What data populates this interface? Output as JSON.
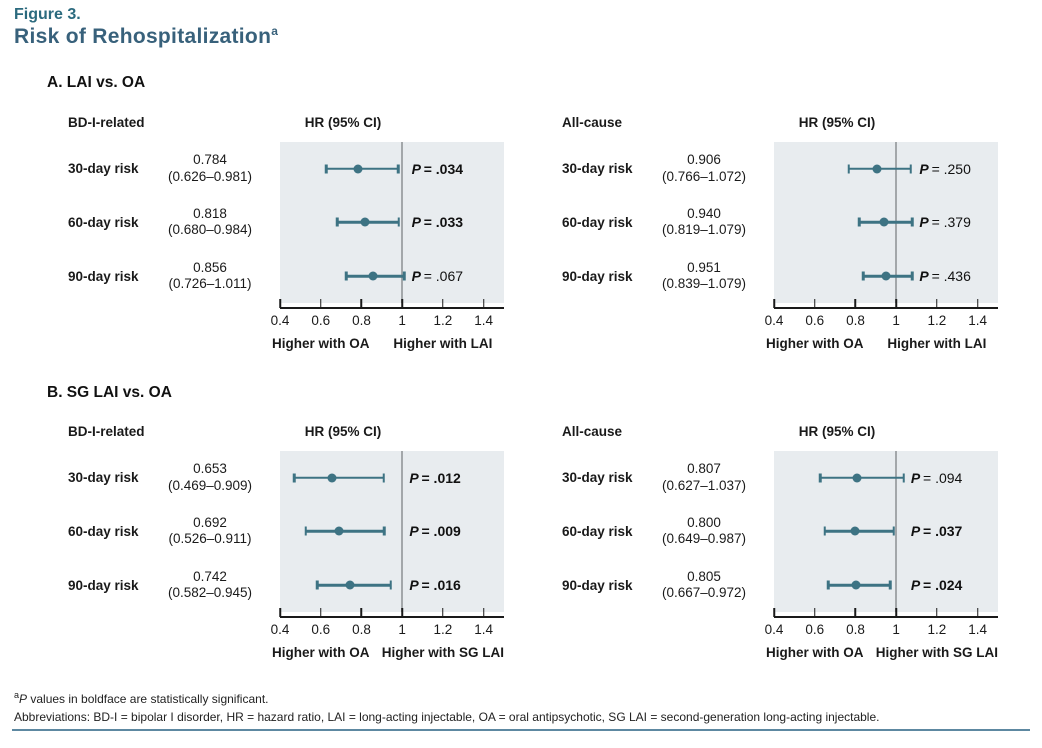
{
  "figure": {
    "label": "Figure 3.",
    "title": "Risk of Rehospitalization",
    "title_superscript": "a"
  },
  "colors": {
    "figure_label_teal": "#2b6a7e",
    "title_teal": "#38617b",
    "marker_teal": "#3d7383",
    "plot_background": "#e8ecef",
    "reference_line_gray": "#a3a7aa",
    "bottom_rule_blue": "#5d88a1"
  },
  "axis": {
    "min": 0.4,
    "max": 1.5,
    "reference": 1.0,
    "tick_labels": [
      "0.4",
      "0.6",
      "0.8",
      "1",
      "1.2",
      "1.4"
    ],
    "tick_values": [
      0.4,
      0.6,
      0.8,
      1.0,
      1.2,
      1.4
    ]
  },
  "p_symbol": "P",
  "panels": [
    {
      "id": "A",
      "section_label": "A. LAI vs. OA",
      "direction_left": "Higher with OA",
      "direction_right": "Higher with LAI",
      "subcharts": [
        {
          "group_label": "BD-I-related",
          "col_header": "HR (95% CI)",
          "rows": [
            {
              "label": "30-day risk",
              "estimate": "0.784",
              "ci_text": "(0.626–0.981)",
              "hr": 0.784,
              "ci_low": 0.626,
              "ci_high": 0.981,
              "p": "= .034",
              "significant": true
            },
            {
              "label": "60-day risk",
              "estimate": "0.818",
              "ci_text": "(0.680–0.984)",
              "hr": 0.818,
              "ci_low": 0.68,
              "ci_high": 0.984,
              "p": "= .033",
              "significant": true
            },
            {
              "label": "90-day risk",
              "estimate": "0.856",
              "ci_text": "(0.726–1.011)",
              "hr": 0.856,
              "ci_low": 0.726,
              "ci_high": 1.011,
              "p": "= .067",
              "significant": false
            }
          ]
        },
        {
          "group_label": "All-cause",
          "col_header": "HR (95% CI)",
          "rows": [
            {
              "label": "30-day risk",
              "estimate": "0.906",
              "ci_text": "(0.766–1.072)",
              "hr": 0.906,
              "ci_low": 0.766,
              "ci_high": 1.072,
              "p": "= .250",
              "significant": false
            },
            {
              "label": "60-day risk",
              "estimate": "0.940",
              "ci_text": "(0.819–1.079)",
              "hr": 0.94,
              "ci_low": 0.819,
              "ci_high": 1.079,
              "p": "= .379",
              "significant": false
            },
            {
              "label": "90-day risk",
              "estimate": "0.951",
              "ci_text": "(0.839–1.079)",
              "hr": 0.951,
              "ci_low": 0.839,
              "ci_high": 1.079,
              "p": "= .436",
              "significant": false
            }
          ]
        }
      ]
    },
    {
      "id": "B",
      "section_label": "B. SG LAI vs. OA",
      "direction_left": "Higher with OA",
      "direction_right": "Higher with SG LAI",
      "subcharts": [
        {
          "group_label": "BD-I-related",
          "col_header": "HR (95% CI)",
          "rows": [
            {
              "label": "30-day risk",
              "estimate": "0.653",
              "ci_text": "(0.469–0.909)",
              "hr": 0.653,
              "ci_low": 0.469,
              "ci_high": 0.909,
              "p": "= .012",
              "significant": true
            },
            {
              "label": "60-day risk",
              "estimate": "0.692",
              "ci_text": "(0.526–0.911)",
              "hr": 0.692,
              "ci_low": 0.526,
              "ci_high": 0.911,
              "p": "= .009",
              "significant": true
            },
            {
              "label": "90-day risk",
              "estimate": "0.742",
              "ci_text": "(0.582–0.945)",
              "hr": 0.742,
              "ci_low": 0.582,
              "ci_high": 0.945,
              "p": "= .016",
              "significant": true
            }
          ]
        },
        {
          "group_label": "All-cause",
          "col_header": "HR (95% CI)",
          "rows": [
            {
              "label": "30-day risk",
              "estimate": "0.807",
              "ci_text": "(0.627–1.037)",
              "hr": 0.807,
              "ci_low": 0.627,
              "ci_high": 1.037,
              "p": "= .094",
              "significant": false
            },
            {
              "label": "60-day risk",
              "estimate": "0.800",
              "ci_text": "(0.649–0.987)",
              "hr": 0.8,
              "ci_low": 0.649,
              "ci_high": 0.987,
              "p": "= .037",
              "significant": true
            },
            {
              "label": "90-day risk",
              "estimate": "0.805",
              "ci_text": "(0.667–0.972)",
              "hr": 0.805,
              "ci_low": 0.667,
              "ci_high": 0.972,
              "p": "= .024",
              "significant": true
            }
          ]
        }
      ]
    }
  ],
  "footnotes": {
    "note_superscript": "a",
    "note_p": "P",
    "note_rest": " values in boldface are statistically significant.",
    "abbreviations": "Abbreviations: BD-I = bipolar I disorder, HR = hazard ratio, LAI = long-acting injectable, OA = oral antipsychotic, SG LAI = second-generation long-acting injectable."
  },
  "chart_data": [
    {
      "type": "scatter",
      "subtype": "forest-plot",
      "title": "A. LAI vs. OA — BD-I-related",
      "xlabel": "HR (95% CI)",
      "categories": [
        "30-day risk",
        "60-day risk",
        "90-day risk"
      ],
      "series": [
        {
          "name": "HR",
          "values": [
            0.784,
            0.818,
            0.856
          ]
        },
        {
          "name": "CI lower",
          "values": [
            0.626,
            0.68,
            0.726
          ]
        },
        {
          "name": "CI upper",
          "values": [
            0.981,
            0.984,
            1.011
          ]
        }
      ],
      "p_values": [
        ".034",
        ".033",
        ".067"
      ],
      "significant": [
        true,
        true,
        false
      ],
      "xlim": [
        0.4,
        1.5
      ],
      "reference_line": 1.0,
      "x_ticks": [
        0.4,
        0.6,
        0.8,
        1,
        1.2,
        1.4
      ],
      "direction_labels": [
        "Higher with OA",
        "Higher with LAI"
      ],
      "grid": false,
      "legend": "none"
    },
    {
      "type": "scatter",
      "subtype": "forest-plot",
      "title": "A. LAI vs. OA — All-cause",
      "xlabel": "HR (95% CI)",
      "categories": [
        "30-day risk",
        "60-day risk",
        "90-day risk"
      ],
      "series": [
        {
          "name": "HR",
          "values": [
            0.906,
            0.94,
            0.951
          ]
        },
        {
          "name": "CI lower",
          "values": [
            0.766,
            0.819,
            0.839
          ]
        },
        {
          "name": "CI upper",
          "values": [
            1.072,
            1.079,
            1.079
          ]
        }
      ],
      "p_values": [
        ".250",
        ".379",
        ".436"
      ],
      "significant": [
        false,
        false,
        false
      ],
      "xlim": [
        0.4,
        1.5
      ],
      "reference_line": 1.0,
      "x_ticks": [
        0.4,
        0.6,
        0.8,
        1,
        1.2,
        1.4
      ],
      "direction_labels": [
        "Higher with OA",
        "Higher with LAI"
      ],
      "grid": false,
      "legend": "none"
    },
    {
      "type": "scatter",
      "subtype": "forest-plot",
      "title": "B. SG LAI vs. OA — BD-I-related",
      "xlabel": "HR (95% CI)",
      "categories": [
        "30-day risk",
        "60-day risk",
        "90-day risk"
      ],
      "series": [
        {
          "name": "HR",
          "values": [
            0.653,
            0.692,
            0.742
          ]
        },
        {
          "name": "CI lower",
          "values": [
            0.469,
            0.526,
            0.582
          ]
        },
        {
          "name": "CI upper",
          "values": [
            0.909,
            0.911,
            0.945
          ]
        }
      ],
      "p_values": [
        ".012",
        ".009",
        ".016"
      ],
      "significant": [
        true,
        true,
        true
      ],
      "xlim": [
        0.4,
        1.5
      ],
      "reference_line": 1.0,
      "x_ticks": [
        0.4,
        0.6,
        0.8,
        1,
        1.2,
        1.4
      ],
      "direction_labels": [
        "Higher with OA",
        "Higher with SG LAI"
      ],
      "grid": false,
      "legend": "none"
    },
    {
      "type": "scatter",
      "subtype": "forest-plot",
      "title": "B. SG LAI vs. OA — All-cause",
      "xlabel": "HR (95% CI)",
      "categories": [
        "30-day risk",
        "60-day risk",
        "90-day risk"
      ],
      "series": [
        {
          "name": "HR",
          "values": [
            0.807,
            0.8,
            0.805
          ]
        },
        {
          "name": "CI lower",
          "values": [
            0.627,
            0.649,
            0.667
          ]
        },
        {
          "name": "CI upper",
          "values": [
            1.037,
            0.987,
            0.972
          ]
        }
      ],
      "p_values": [
        ".094",
        ".037",
        ".024"
      ],
      "significant": [
        false,
        true,
        true
      ],
      "xlim": [
        0.4,
        1.5
      ],
      "reference_line": 1.0,
      "x_ticks": [
        0.4,
        0.6,
        0.8,
        1,
        1.2,
        1.4
      ],
      "direction_labels": [
        "Higher with OA",
        "Higher with SG LAI"
      ],
      "grid": false,
      "legend": "none"
    }
  ],
  "layout_hints": {
    "panel_tops": [
      74,
      384
    ],
    "subchart_tops": [
      110,
      419
    ],
    "subchart_lefts": [
      68,
      562
    ]
  }
}
